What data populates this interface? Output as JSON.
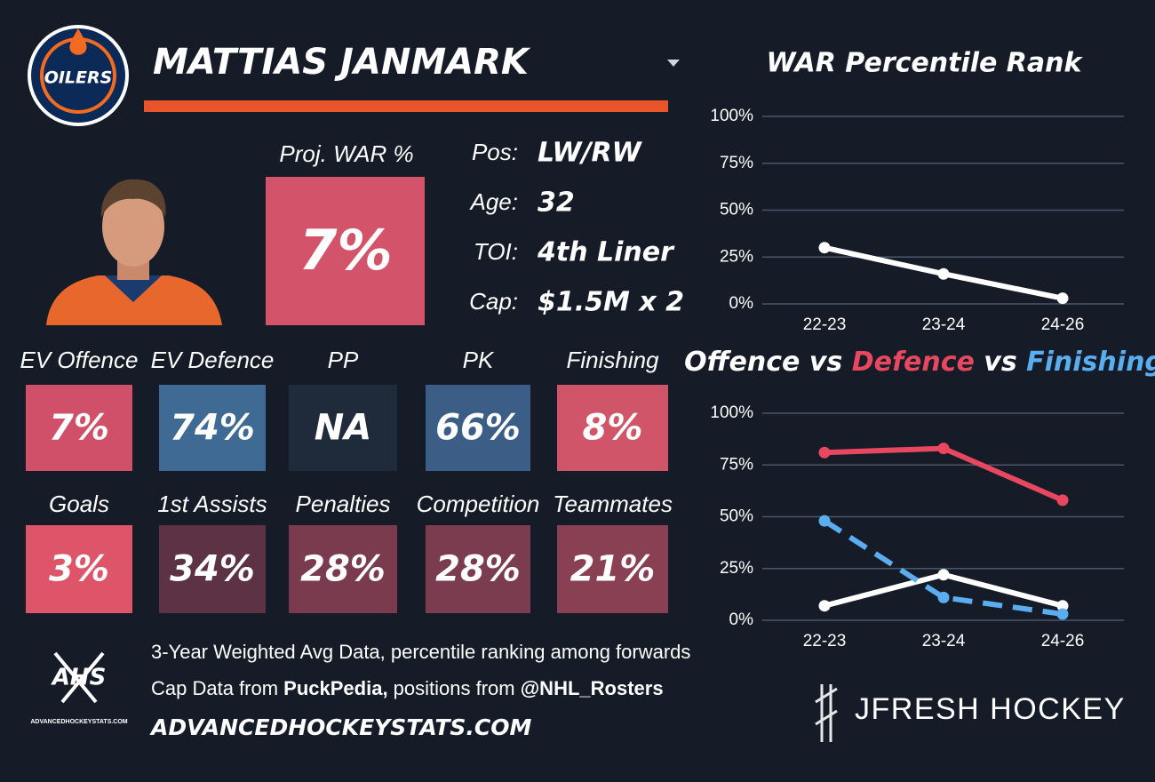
{
  "header": {
    "name": "MATTIAS JANMARK",
    "logo_text": "OILERS"
  },
  "projection": {
    "label": "Proj. WAR %",
    "value": "7%",
    "color": "#d3536a"
  },
  "info": [
    {
      "label": "Pos:",
      "value": "LW/RW"
    },
    {
      "label": "Age:",
      "value": "32"
    },
    {
      "label": "TOI:",
      "value": "4th Liner"
    },
    {
      "label": "Cap:",
      "value": "$1.5M x 2"
    }
  ],
  "tiles": [
    [
      {
        "label": "EV Offence",
        "value": "7%",
        "color": "#cf5068"
      },
      {
        "label": "EV Defence",
        "value": "74%",
        "color": "#3f6a93"
      },
      {
        "label": "PP",
        "value": "NA",
        "color": "#1f2b3a"
      },
      {
        "label": "PK",
        "value": "66%",
        "color": "#3c5e86"
      },
      {
        "label": "Finishing",
        "value": "8%",
        "color": "#d05569"
      }
    ],
    [
      {
        "label": "Goals",
        "value": "3%",
        "color": "#de5468"
      },
      {
        "label": "1st Assists",
        "value": "34%",
        "color": "#5d3245"
      },
      {
        "label": "Penalties",
        "value": "28%",
        "color": "#7a3b4e"
      },
      {
        "label": "Competition",
        "value": "28%",
        "color": "#7b3c4f"
      },
      {
        "label": "Teammates",
        "value": "21%",
        "color": "#8a4053"
      }
    ]
  ],
  "footer": {
    "logo_text": "AHS",
    "logo_subtext": "ADVANCEDHOCKEYSTATS.COM",
    "note": "3-Year Weighted Avg Data, percentile ranking among forwards",
    "credits": [
      {
        "text": "Cap Data from "
      },
      {
        "text": "PuckPedia,",
        "bold": true
      },
      {
        "text": " positions from "
      },
      {
        "text": "@NHL_Rosters",
        "bold": true
      }
    ],
    "site": "ADVANCEDHOCKEYSTATS.COM",
    "brand": "JFRESH HOCKEY"
  },
  "chart_data": [
    {
      "type": "line",
      "title": "WAR Percentile Rank",
      "categories": [
        "22-23",
        "23-24",
        "24-26"
      ],
      "series": [
        {
          "color": "#ffffff",
          "values": [
            30,
            16,
            3
          ]
        }
      ],
      "ylim": [
        0,
        100
      ],
      "yticks": [
        {
          "value": 0,
          "label": "0%"
        },
        {
          "value": 25,
          "label": "25%"
        },
        {
          "value": 50,
          "label": "50%"
        },
        {
          "value": 75,
          "label": "75%"
        },
        {
          "value": 100,
          "label": "100%"
        }
      ],
      "grid": true
    },
    {
      "type": "line",
      "title_separator": "vs",
      "categories": [
        "22-23",
        "23-24",
        "24-26"
      ],
      "series": [
        {
          "name": "Offence",
          "color": "#ffffff",
          "values": [
            7,
            22,
            7
          ]
        },
        {
          "name": "Defence",
          "color": "#e8485f",
          "values": [
            81,
            83,
            58
          ]
        },
        {
          "name": "Finishing",
          "color": "#5aaef0",
          "dashed": true,
          "values": [
            48,
            11,
            3
          ]
        }
      ],
      "ylim": [
        0,
        100
      ],
      "yticks": [
        {
          "value": 0,
          "label": "0%"
        },
        {
          "value": 25,
          "label": "25%"
        },
        {
          "value": 50,
          "label": "50%"
        },
        {
          "value": 75,
          "label": "75%"
        },
        {
          "value": 100,
          "label": "100%"
        }
      ],
      "grid": true
    }
  ]
}
